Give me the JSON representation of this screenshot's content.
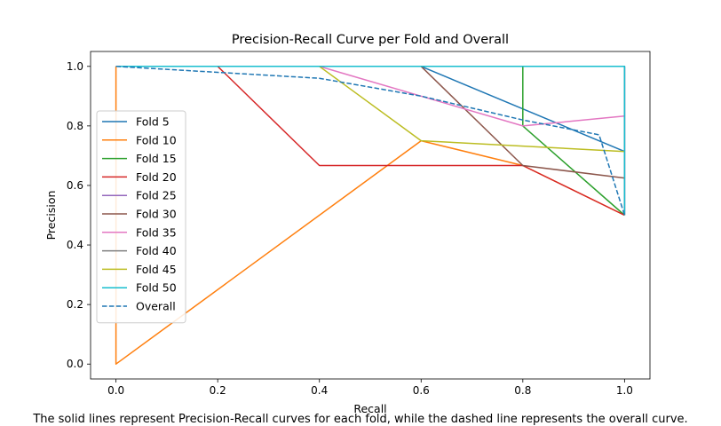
{
  "chart_data": {
    "type": "line",
    "title": "Precision-Recall Curve per Fold and Overall",
    "xlabel": "Recall",
    "ylabel": "Precision",
    "xlim": [
      -0.05,
      1.05
    ],
    "ylim": [
      -0.05,
      1.05
    ],
    "xticks": [
      "0.0",
      "0.2",
      "0.4",
      "0.6",
      "0.8",
      "1.0"
    ],
    "yticks": [
      "0.0",
      "0.2",
      "0.4",
      "0.6",
      "0.8",
      "1.0"
    ],
    "grid": false,
    "legend_position": "center-left",
    "series": [
      {
        "name": "Fold 5",
        "color": "#1f77b4",
        "dashed": false,
        "x": [
          0.0,
          0.6,
          0.8,
          1.0
        ],
        "y": [
          1.0,
          1.0,
          0.857,
          0.714
        ]
      },
      {
        "name": "Fold 10",
        "color": "#ff7f0e",
        "dashed": false,
        "x": [
          0.0,
          0.0,
          0.6,
          0.8,
          1.0
        ],
        "y": [
          1.0,
          0.0,
          0.75,
          0.667,
          0.5
        ]
      },
      {
        "name": "Fold 15",
        "color": "#2ca02c",
        "dashed": false,
        "x": [
          0.0,
          0.8,
          0.8,
          1.0
        ],
        "y": [
          1.0,
          1.0,
          0.8,
          0.5
        ]
      },
      {
        "name": "Fold 20",
        "color": "#d62728",
        "dashed": false,
        "x": [
          0.0,
          0.2,
          0.4,
          0.8,
          1.0
        ],
        "y": [
          1.0,
          1.0,
          0.667,
          0.667,
          0.5
        ]
      },
      {
        "name": "Fold 25",
        "color": "#9467bd",
        "dashed": false,
        "x": [
          0.0,
          1.0,
          1.0
        ],
        "y": [
          1.0,
          1.0,
          0.5
        ]
      },
      {
        "name": "Fold 30",
        "color": "#8c564b",
        "dashed": false,
        "x": [
          0.0,
          0.6,
          0.8,
          1.0
        ],
        "y": [
          1.0,
          1.0,
          0.667,
          0.625
        ]
      },
      {
        "name": "Fold 35",
        "color": "#e377c2",
        "dashed": false,
        "x": [
          0.0,
          0.4,
          0.8,
          1.0
        ],
        "y": [
          1.0,
          1.0,
          0.8,
          0.833
        ]
      },
      {
        "name": "Fold 40",
        "color": "#7f7f7f",
        "dashed": false,
        "x": [
          0.0,
          1.0,
          1.0
        ],
        "y": [
          1.0,
          1.0,
          0.5
        ]
      },
      {
        "name": "Fold 45",
        "color": "#bcbd22",
        "dashed": false,
        "x": [
          0.0,
          0.4,
          0.6,
          1.0
        ],
        "y": [
          1.0,
          1.0,
          0.75,
          0.714
        ]
      },
      {
        "name": "Fold 50",
        "color": "#17becf",
        "dashed": false,
        "x": [
          0.0,
          1.0,
          1.0
        ],
        "y": [
          1.0,
          1.0,
          0.5
        ]
      },
      {
        "name": "Overall",
        "color": "#1f77b4",
        "dashed": true,
        "x": [
          0.0,
          0.2,
          0.4,
          0.6,
          0.8,
          0.95,
          1.0
        ],
        "y": [
          1.0,
          0.98,
          0.96,
          0.9,
          0.82,
          0.77,
          0.5
        ]
      }
    ]
  },
  "caption": "The solid lines represent Precision-Recall curves for each fold, while the dashed line represents the overall curve."
}
